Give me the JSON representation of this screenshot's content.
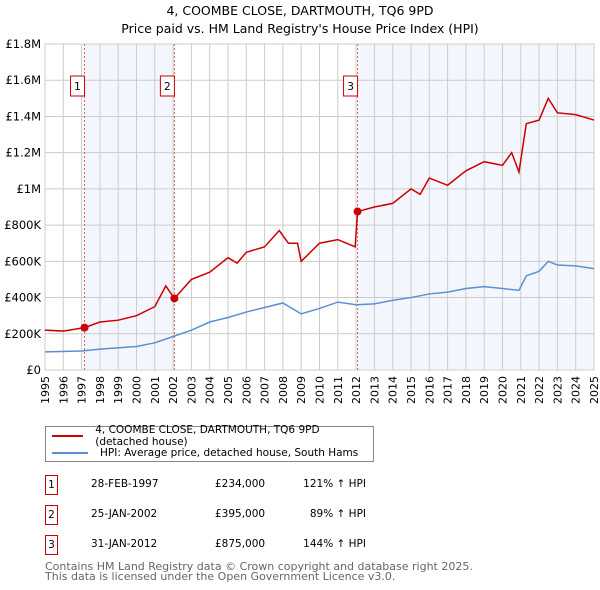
{
  "chart_data": {
    "type": "line",
    "title": "4, COOMBE CLOSE, DARTMOUTH, TQ6 9PD",
    "subtitle": "Price paid vs. HM Land Registry's House Price Index (HPI)",
    "xlim": [
      1995,
      2025
    ],
    "ylim": [
      0,
      1800000
    ],
    "x_ticks": [
      "1995",
      "1996",
      "1997",
      "1998",
      "1999",
      "2000",
      "2001",
      "2002",
      "2003",
      "2004",
      "2005",
      "2006",
      "2007",
      "2008",
      "2009",
      "2010",
      "2011",
      "2012",
      "2013",
      "2014",
      "2015",
      "2016",
      "2017",
      "2018",
      "2019",
      "2020",
      "2021",
      "2022",
      "2023",
      "2024",
      "2025"
    ],
    "y_ticks": [
      {
        "v": 0,
        "label": "£0"
      },
      {
        "v": 200000,
        "label": "£200K"
      },
      {
        "v": 400000,
        "label": "£400K"
      },
      {
        "v": 600000,
        "label": "£600K"
      },
      {
        "v": 800000,
        "label": "£800K"
      },
      {
        "v": 1000000,
        "label": "£1M"
      },
      {
        "v": 1200000,
        "label": "£1.2M"
      },
      {
        "v": 1400000,
        "label": "£1.4M"
      },
      {
        "v": 1600000,
        "label": "£1.6M"
      },
      {
        "v": 1800000,
        "label": "£1.8M"
      }
    ],
    "grid": true,
    "series": [
      {
        "name": "4, COOMBE CLOSE, DARTMOUTH, TQ6 9PD (detached house)",
        "color": "#cc0000",
        "points": [
          [
            1995,
            220000
          ],
          [
            1996,
            215000
          ],
          [
            1997.16,
            234000
          ],
          [
            1998,
            265000
          ],
          [
            1999,
            275000
          ],
          [
            2000,
            300000
          ],
          [
            2001,
            350000
          ],
          [
            2001.6,
            464000
          ],
          [
            2002.07,
            395000
          ],
          [
            2003,
            500000
          ],
          [
            2004,
            540000
          ],
          [
            2005,
            620000
          ],
          [
            2005.5,
            590000
          ],
          [
            2006,
            650000
          ],
          [
            2007,
            680000
          ],
          [
            2007.8,
            770000
          ],
          [
            2008.3,
            700000
          ],
          [
            2008.8,
            700000
          ],
          [
            2009,
            600000
          ],
          [
            2010,
            700000
          ],
          [
            2011,
            720000
          ],
          [
            2011.95,
            680000
          ],
          [
            2012.08,
            875000
          ],
          [
            2013,
            900000
          ],
          [
            2014,
            920000
          ],
          [
            2015,
            1000000
          ],
          [
            2015.5,
            970000
          ],
          [
            2016,
            1060000
          ],
          [
            2017,
            1020000
          ],
          [
            2018,
            1100000
          ],
          [
            2019,
            1150000
          ],
          [
            2020,
            1130000
          ],
          [
            2020.5,
            1200000
          ],
          [
            2020.9,
            1093000
          ],
          [
            2021.3,
            1360000
          ],
          [
            2022,
            1380000
          ],
          [
            2022.5,
            1500000
          ],
          [
            2023,
            1420000
          ],
          [
            2024,
            1410000
          ],
          [
            2025,
            1380000
          ]
        ]
      },
      {
        "name": "HPI: Average price, detached house, South Hams",
        "color": "#5b8fd4",
        "points": [
          [
            1995,
            100000
          ],
          [
            1997,
            105000
          ],
          [
            1998,
            115000
          ],
          [
            2000,
            130000
          ],
          [
            2001,
            150000
          ],
          [
            2002,
            185000
          ],
          [
            2003,
            220000
          ],
          [
            2004,
            265000
          ],
          [
            2005,
            290000
          ],
          [
            2006,
            320000
          ],
          [
            2007,
            345000
          ],
          [
            2008,
            370000
          ],
          [
            2009,
            310000
          ],
          [
            2010,
            340000
          ],
          [
            2011,
            375000
          ],
          [
            2012,
            360000
          ],
          [
            2013,
            365000
          ],
          [
            2014,
            385000
          ],
          [
            2015,
            400000
          ],
          [
            2016,
            420000
          ],
          [
            2017,
            430000
          ],
          [
            2018,
            450000
          ],
          [
            2019,
            460000
          ],
          [
            2020,
            450000
          ],
          [
            2020.9,
            440000
          ],
          [
            2021.3,
            520000
          ],
          [
            2022,
            545000
          ],
          [
            2022.5,
            600000
          ],
          [
            2023,
            580000
          ],
          [
            2024,
            575000
          ],
          [
            2025,
            560000
          ]
        ]
      }
    ],
    "sales": [
      {
        "n": "1",
        "x": 1997.16,
        "price": 234000,
        "date": "28-FEB-1997",
        "price_label": "£234,000",
        "hpi": "121% ↑ HPI"
      },
      {
        "n": "2",
        "x": 2002.07,
        "price": 395000,
        "date": "25-JAN-2002",
        "price_label": "£395,000",
        "hpi": "89% ↑ HPI"
      },
      {
        "n": "3",
        "x": 2012.08,
        "price": 875000,
        "date": "31-JAN-2012",
        "price_label": "£875,000",
        "hpi": "144% ↑ HPI"
      }
    ],
    "shaded_ranges": [
      [
        1997.16,
        2002.07
      ],
      [
        2012.08,
        2025
      ]
    ],
    "legend_placement": "below"
  },
  "footer": [
    "Contains HM Land Registry data © Crown copyright and database right 2025.",
    "This data is licensed under the Open Government Licence v3.0."
  ]
}
